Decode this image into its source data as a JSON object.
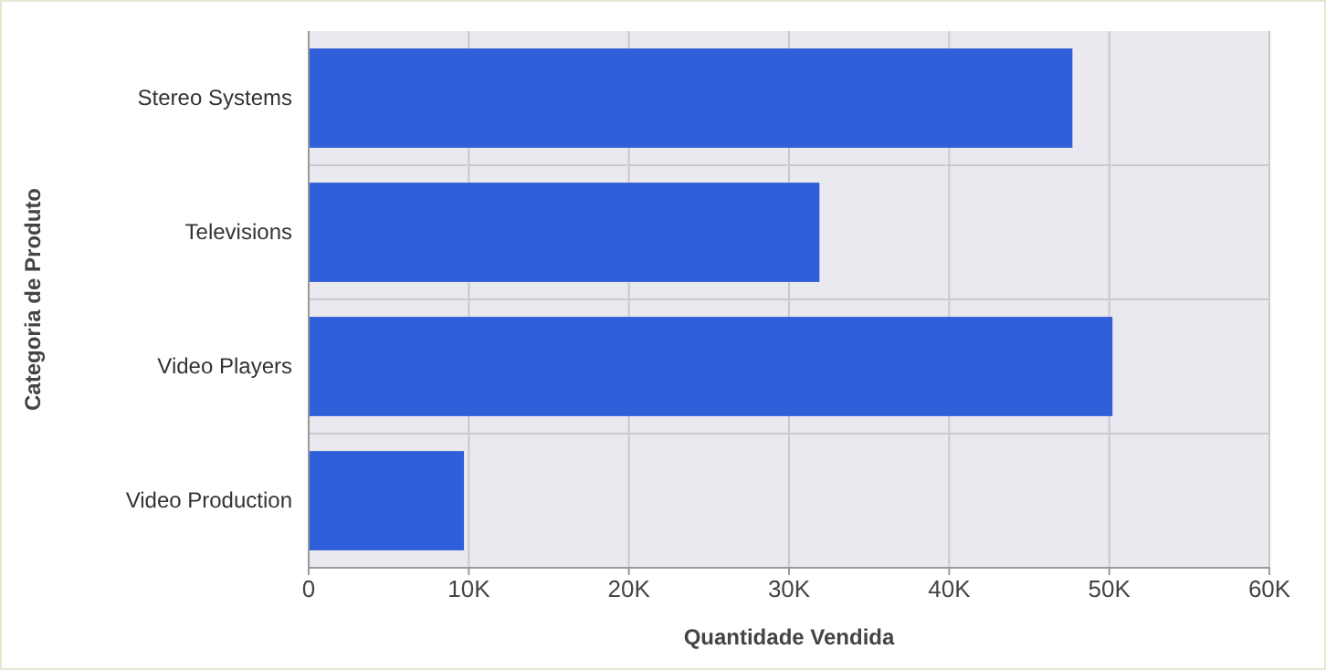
{
  "chart_data": {
    "type": "bar",
    "orientation": "horizontal",
    "xlabel": "Quantidade Vendida",
    "ylabel": "Categoria de Produto",
    "categories": [
      "Stereo Systems",
      "Televisions",
      "Video Players",
      "Video Production"
    ],
    "values": [
      47700,
      31900,
      50200,
      9700
    ],
    "color": "#2f5fd9",
    "xlim": [
      0,
      60000
    ],
    "xticks": [
      0,
      {
        "value": 10000,
        "label": "10K"
      },
      {
        "value": 20000,
        "label": "20K"
      },
      {
        "value": 30000,
        "label": "30K"
      },
      {
        "value": 40000,
        "label": "40K"
      },
      {
        "value": 50000,
        "label": "50K"
      },
      {
        "value": 60000,
        "label": "60K"
      }
    ],
    "grid": true
  }
}
